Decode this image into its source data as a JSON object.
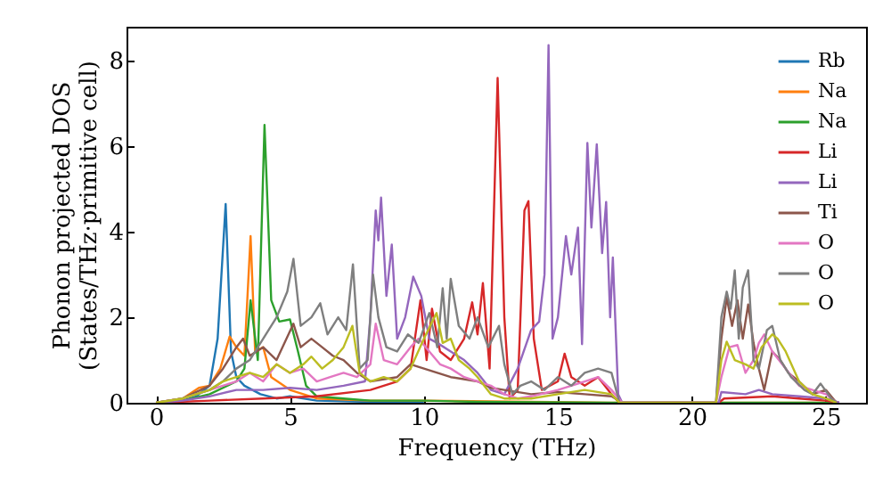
{
  "chart_data": {
    "type": "line",
    "xlabel": "Frequency (THz)",
    "ylabel": "Phonon projected DOS\n(States/THz·primitive cell)",
    "xlim": [
      -1.1,
      26.5
    ],
    "ylim": [
      0,
      8.8
    ],
    "xticks": [
      0,
      5,
      10,
      15,
      20,
      25
    ],
    "yticks": [
      0,
      2,
      4,
      6,
      8
    ],
    "grid": false,
    "legend": "top right",
    "marker": "none",
    "line_style": "solid",
    "series": [
      {
        "name": "Rb",
        "color": "#1f77b4",
        "x": [
          0,
          1,
          1.5,
          2,
          2.3,
          2.6,
          2.8,
          3.0,
          3.3,
          3.6,
          3.9,
          4.5,
          5,
          6,
          8,
          10
        ],
        "values": [
          0,
          0.05,
          0.15,
          0.4,
          1.5,
          4.65,
          1.2,
          0.6,
          0.4,
          0.3,
          0.2,
          0.1,
          0.15,
          0.05,
          0.02,
          0.02
        ]
      },
      {
        "name": "Na",
        "color": "#ff7f0e",
        "x": [
          0,
          1,
          1.6,
          2.0,
          2.4,
          2.75,
          3.0,
          3.3,
          3.53,
          3.7,
          4.0,
          4.3,
          5,
          6,
          8,
          10,
          14,
          17,
          25.5
        ],
        "values": [
          0,
          0.1,
          0.35,
          0.4,
          0.8,
          1.55,
          1.3,
          1.1,
          3.9,
          1.2,
          1.3,
          0.6,
          0.3,
          0.1,
          0.05,
          0.05,
          0.02,
          0,
          0
        ]
      },
      {
        "name": "Na",
        "color": "#2ca02c",
        "x": [
          0,
          1,
          2,
          3,
          3.3,
          3.53,
          3.8,
          4.05,
          4.3,
          4.6,
          5.0,
          5.3,
          5.6,
          6,
          7,
          8,
          10,
          12,
          17,
          25.5
        ],
        "values": [
          0,
          0.05,
          0.2,
          0.5,
          0.8,
          2.4,
          1.0,
          6.5,
          2.4,
          1.9,
          1.95,
          1.2,
          0.4,
          0.15,
          0.1,
          0.05,
          0.05,
          0.02,
          0,
          0
        ]
      },
      {
        "name": "Li",
        "color": "#d62728",
        "x": [
          0,
          2,
          4,
          6,
          8,
          9,
          9.5,
          9.87,
          10.1,
          10.3,
          10.6,
          11,
          11.5,
          11.8,
          12.0,
          12.2,
          12.45,
          12.75,
          13.0,
          13.2,
          13.5,
          13.75,
          13.9,
          14.1,
          14.4,
          15.0,
          15.25,
          15.5,
          16,
          16.5,
          17,
          17.3,
          21,
          21.2,
          23,
          24,
          25,
          25.5
        ],
        "values": [
          0,
          0.05,
          0.1,
          0.15,
          0.3,
          0.5,
          0.8,
          2.4,
          1.0,
          2.2,
          1.2,
          1.0,
          1.5,
          2.35,
          1.6,
          2.8,
          0.8,
          7.6,
          2.0,
          0.1,
          0.3,
          4.5,
          4.72,
          1.5,
          0.3,
          0.5,
          1.15,
          0.6,
          0.4,
          0.6,
          0.2,
          0,
          0,
          0.1,
          0.15,
          0.1,
          0.05,
          0
        ]
      },
      {
        "name": "Li",
        "color": "#9467bd",
        "x": [
          0,
          1,
          2,
          3,
          4,
          5,
          6,
          7,
          7.8,
          8.0,
          8.2,
          8.3,
          8.4,
          8.6,
          8.8,
          9.0,
          9.3,
          9.6,
          9.9,
          10.2,
          10.5,
          11,
          11.5,
          12,
          12.5,
          13,
          13.5,
          14,
          14.3,
          14.5,
          14.65,
          14.8,
          15.0,
          15.3,
          15.5,
          15.75,
          15.9,
          16.1,
          16.25,
          16.45,
          16.65,
          16.8,
          16.95,
          17.05,
          17.25,
          17.4,
          21,
          21.1,
          22,
          22.5,
          23,
          24,
          25,
          25.5
        ],
        "values": [
          0,
          0.05,
          0.15,
          0.3,
          0.3,
          0.35,
          0.3,
          0.4,
          0.5,
          2.0,
          4.5,
          3.8,
          4.8,
          2.5,
          3.7,
          1.5,
          2.0,
          2.95,
          2.5,
          1.5,
          1.4,
          1.2,
          1.0,
          0.7,
          0.3,
          0.2,
          0.8,
          1.7,
          1.9,
          3.0,
          8.37,
          1.5,
          2.0,
          3.9,
          3.0,
          4.1,
          1.37,
          6.08,
          4.1,
          6.05,
          3.5,
          4.7,
          2.0,
          3.4,
          0.2,
          0,
          0,
          0.25,
          0.2,
          0.3,
          0.2,
          0.15,
          0.1,
          0
        ]
      },
      {
        "name": "Ti",
        "color": "#8c564b",
        "x": [
          0,
          1,
          2,
          2.5,
          3.0,
          3.25,
          3.5,
          4.0,
          4.5,
          5.13,
          5.4,
          5.8,
          6.2,
          6.6,
          7,
          7.5,
          8,
          9,
          9.5,
          10,
          10.5,
          11,
          12,
          12.5,
          13,
          14,
          15,
          16,
          17,
          17.4,
          20.9,
          21.1,
          21.3,
          21.5,
          21.7,
          21.9,
          22.1,
          22.3,
          22.5,
          22.7,
          23.0,
          23.3,
          23.6,
          24.0,
          24.5,
          25,
          25.4
        ],
        "values": [
          0,
          0.1,
          0.4,
          0.8,
          1.3,
          1.5,
          1.1,
          1.3,
          1.0,
          1.85,
          1.3,
          1.5,
          1.3,
          1.1,
          1.0,
          0.7,
          0.5,
          0.6,
          0.9,
          0.8,
          0.7,
          0.6,
          0.5,
          0.35,
          0.3,
          0.2,
          0.25,
          0.2,
          0.15,
          0,
          0,
          1.5,
          2.47,
          1.8,
          2.4,
          1.5,
          2.3,
          1.4,
          0.8,
          0.3,
          1.2,
          1.0,
          0.7,
          0.5,
          0.2,
          0.3,
          0
        ]
      },
      {
        "name": "O",
        "color": "#e377c2",
        "x": [
          0,
          1,
          2,
          3,
          3.5,
          4,
          4.5,
          5,
          5.5,
          6,
          6.5,
          7,
          7.5,
          8,
          8.2,
          8.5,
          9,
          9.5,
          9.8,
          10.2,
          10.6,
          11,
          11.5,
          12,
          12.5,
          13,
          13.5,
          14,
          15,
          16,
          16.5,
          17,
          17.4,
          20.9,
          21.1,
          21.4,
          21.7,
          22,
          22.3,
          22.5,
          22.7,
          23,
          23.5,
          24,
          24.5,
          25,
          25.4
        ],
        "values": [
          0,
          0.1,
          0.3,
          0.5,
          0.7,
          0.5,
          0.9,
          0.7,
          0.8,
          0.5,
          0.6,
          0.7,
          0.6,
          0.9,
          1.85,
          1.0,
          0.9,
          1.3,
          1.5,
          1.2,
          0.9,
          0.8,
          0.6,
          0.5,
          0.4,
          0.2,
          0.1,
          0.15,
          0.3,
          0.5,
          0.6,
          0.3,
          0,
          0,
          0.6,
          1.3,
          1.35,
          0.7,
          1.0,
          1.4,
          1.6,
          1.2,
          0.8,
          0.4,
          0.3,
          0.2,
          0
        ]
      },
      {
        "name": "O",
        "color": "#7f7f7f",
        "x": [
          0,
          1,
          2,
          2.5,
          3.0,
          3.5,
          4.0,
          4.5,
          4.9,
          5.13,
          5.4,
          5.8,
          6.13,
          6.4,
          6.8,
          7.1,
          7.35,
          7.6,
          7.9,
          8.1,
          8.3,
          8.6,
          9,
          9.4,
          9.8,
          10.2,
          10.5,
          10.7,
          10.85,
          11.0,
          11.3,
          11.7,
          12,
          12.4,
          12.8,
          13.0,
          13.3,
          13.6,
          14,
          14.5,
          15,
          15.5,
          16,
          16.5,
          17,
          17.3,
          20.9,
          21.1,
          21.3,
          21.45,
          21.6,
          21.75,
          21.9,
          22.1,
          22.3,
          22.5,
          22.8,
          23.0,
          23.3,
          23.7,
          24.2,
          24.5,
          24.8,
          25.2,
          25.4
        ],
        "values": [
          0,
          0.1,
          0.3,
          0.5,
          0.8,
          1.0,
          1.5,
          2.0,
          2.6,
          3.37,
          1.8,
          2.0,
          2.33,
          1.6,
          2.0,
          1.7,
          3.24,
          0.8,
          1.0,
          3.0,
          2.0,
          1.3,
          1.2,
          1.6,
          1.4,
          2.1,
          1.3,
          2.68,
          1.5,
          2.9,
          1.8,
          1.5,
          2.0,
          1.3,
          1.8,
          0.9,
          0.2,
          0.4,
          0.5,
          0.3,
          0.6,
          0.4,
          0.7,
          0.8,
          0.7,
          0,
          0,
          2.0,
          2.6,
          2.2,
          3.1,
          1.5,
          2.7,
          3.1,
          1.0,
          0.8,
          1.7,
          1.8,
          1.0,
          0.6,
          0.3,
          0.2,
          0.45,
          0.1,
          0
        ]
      },
      {
        "name": "O",
        "color": "#bcbd22",
        "x": [
          0,
          1,
          2,
          2.5,
          3,
          3.5,
          4,
          4.5,
          5,
          5.5,
          5.8,
          6.2,
          6.6,
          7,
          7.33,
          7.6,
          8,
          8.5,
          9,
          9.5,
          10,
          10.47,
          10.7,
          11,
          11.3,
          11.7,
          12,
          12.5,
          13,
          14,
          15,
          16,
          17,
          17.3,
          20.9,
          21.1,
          21.3,
          21.6,
          22,
          22.3,
          22.6,
          23.0,
          23.2,
          23.5,
          24,
          24.5,
          25,
          25.4
        ],
        "values": [
          0,
          0.1,
          0.3,
          0.5,
          0.6,
          0.7,
          0.6,
          0.9,
          0.7,
          0.9,
          1.08,
          0.8,
          1.0,
          1.3,
          1.8,
          0.7,
          0.5,
          0.6,
          0.5,
          0.8,
          1.5,
          2.1,
          1.4,
          1.5,
          1.0,
          0.8,
          0.6,
          0.2,
          0.1,
          0.1,
          0.2,
          0.3,
          0.2,
          0,
          0,
          1.0,
          1.43,
          1.0,
          0.9,
          0.8,
          1.3,
          1.6,
          1.5,
          1.2,
          0.5,
          0.2,
          0.1,
          0
        ]
      }
    ]
  }
}
